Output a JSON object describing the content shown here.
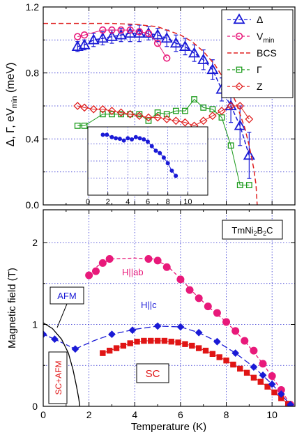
{
  "chart_data": [
    {
      "type": "scatter",
      "panel": "top",
      "ylabel": "Δ, Γ, eV_min (meV)",
      "ylabel_parts": {
        "a": "Δ, Γ, eV",
        "sub": "min",
        "b": " (meV)"
      },
      "xlim": [
        0,
        11
      ],
      "ylim": [
        0,
        1.2
      ],
      "yticks": [
        "0.0",
        "0.4",
        "0.8",
        "1.2"
      ],
      "ytick_values": [
        0,
        0.4,
        0.8,
        1.2
      ],
      "grid": "dotted blue",
      "legend": "top-right",
      "legend_entries": [
        {
          "symbol": "triangle",
          "color": "#1a1ad6",
          "label": "Δ"
        },
        {
          "symbol": "circle",
          "color": "#e8197a",
          "label": "V",
          "sub": "min"
        },
        {
          "symbol": "dash",
          "color": "#e02020",
          "label": "BCS"
        },
        {
          "symbol": "square",
          "color": "#1a9a1a",
          "label": "Γ"
        },
        {
          "symbol": "diamond",
          "color": "#e02020",
          "label": "Z"
        }
      ],
      "series": [
        {
          "name": "Δ",
          "color": "#1a1ad6",
          "marker": "triangle",
          "x": [
            1.5,
            1.8,
            2.2,
            2.6,
            3.0,
            3.4,
            3.8,
            4.2,
            4.6,
            5.0,
            5.4,
            5.8,
            6.2,
            6.6,
            7.0,
            7.4,
            7.8,
            8.2,
            8.6,
            9.0
          ],
          "y": [
            0.96,
            0.97,
            1.0,
            1.01,
            1.02,
            1.03,
            1.04,
            1.04,
            1.04,
            1.03,
            1.01,
            0.98,
            0.96,
            0.92,
            0.88,
            0.82,
            0.7,
            0.6,
            0.48,
            0.3
          ],
          "err": [
            0.03,
            0.03,
            0.04,
            0.04,
            0.04,
            0.04,
            0.05,
            0.05,
            0.04,
            0.04,
            0.05,
            0.05,
            0.05,
            0.05,
            0.06,
            0.06,
            0.07,
            0.1,
            0.12,
            0.14
          ]
        },
        {
          "name": "V_min",
          "color": "#e8197a",
          "marker": "circle",
          "x": [
            1.5,
            1.8,
            2.6,
            3.0,
            3.4,
            3.8,
            4.2,
            4.6,
            5.0,
            5.4
          ],
          "y": [
            1.02,
            1.03,
            1.06,
            1.06,
            1.06,
            1.06,
            1.05,
            1.04,
            0.98,
            0.89
          ]
        },
        {
          "name": "BCS",
          "color": "#e02020",
          "marker": "dash",
          "x": [
            0,
            1,
            2,
            3,
            4,
            5,
            6,
            6.5,
            7,
            7.5,
            8,
            8.4,
            8.8,
            9.0,
            9.2,
            9.3,
            9.35
          ],
          "y": [
            1.1,
            1.1,
            1.1,
            1.1,
            1.095,
            1.08,
            1.03,
            0.99,
            0.93,
            0.85,
            0.74,
            0.63,
            0.47,
            0.36,
            0.22,
            0.12,
            0.0
          ]
        },
        {
          "name": "Γ",
          "color": "#1a9a1a",
          "marker": "square",
          "x": [
            1.5,
            1.8,
            2.6,
            3.0,
            3.4,
            3.8,
            4.2,
            4.6,
            5.0,
            5.4,
            5.8,
            6.2,
            6.6,
            7.0,
            7.4,
            7.8,
            8.2,
            8.6,
            9.0
          ],
          "y": [
            0.48,
            0.48,
            0.55,
            0.55,
            0.55,
            0.55,
            0.55,
            0.51,
            0.56,
            0.55,
            0.57,
            0.57,
            0.64,
            0.59,
            0.58,
            0.53,
            0.36,
            0.12,
            0.12
          ]
        },
        {
          "name": "Z",
          "color": "#e02020",
          "marker": "diamond",
          "x": [
            1.5,
            1.8,
            2.2,
            2.6,
            3.0,
            3.4,
            3.8,
            4.2,
            4.6,
            5.0,
            5.4,
            5.8,
            6.2,
            6.6,
            7.0,
            7.4,
            7.8,
            8.2,
            8.6,
            9.0
          ],
          "y": [
            0.6,
            0.59,
            0.58,
            0.58,
            0.57,
            0.56,
            0.55,
            0.54,
            0.53,
            0.53,
            0.52,
            0.51,
            0.5,
            0.48,
            0.51,
            0.54,
            0.57,
            0.6,
            0.6,
            0.52
          ]
        }
      ],
      "inset": {
        "xlim": [
          0,
          12
        ],
        "ylim": [
          0,
          1.2
        ],
        "xticks": [
          "0",
          "2",
          "4",
          "6",
          "8",
          "10"
        ],
        "xtick_values": [
          0,
          2,
          4,
          6,
          8,
          10
        ],
        "series": [
          {
            "color": "#1a1ad6",
            "x": [
              1.5,
              1.9,
              2.4,
              2.8,
              3.2,
              3.6,
              4.0,
              4.4,
              4.8,
              5.2,
              5.6,
              6.0,
              6.4,
              6.8,
              7.2,
              7.6,
              8.0,
              8.4,
              8.8
            ],
            "y": [
              1.06,
              1.06,
              1.02,
              1.0,
              0.99,
              0.96,
              1.0,
              0.98,
              1.02,
              1.0,
              0.98,
              0.94,
              0.86,
              0.78,
              0.74,
              0.66,
              0.56,
              0.43,
              0.34
            ]
          }
        ]
      }
    },
    {
      "type": "scatter",
      "panel": "bottom",
      "xlabel": "Temperature (K)",
      "ylabel": "Magnetic field (T)",
      "xlim": [
        0,
        11
      ],
      "ylim": [
        0,
        2.4
      ],
      "xticks": [
        "0",
        "2",
        "4",
        "6",
        "8",
        "10"
      ],
      "xtick_values": [
        0,
        2,
        4,
        6,
        8,
        10
      ],
      "yticks": [
        "0",
        "1",
        "2"
      ],
      "ytick_values": [
        0,
        1,
        2
      ],
      "grid": "dotted blue",
      "annotations": {
        "compound": {
          "a": "TmNi",
          "sub1": "2",
          "b": "B",
          "sub2": "2",
          "c": "C"
        },
        "afm": "AFM",
        "sc_afm": "SC+AFM",
        "sc": "SC",
        "h_ab": "H||ab",
        "h_c": "H||c"
      },
      "series": [
        {
          "name": "H||ab",
          "color": "#e8197a",
          "marker": "circle",
          "x": [
            2.0,
            2.3,
            2.6,
            2.9,
            4.6,
            5.0,
            5.4,
            6.0,
            6.4,
            6.8,
            7.2,
            7.6,
            8.0,
            8.4,
            8.8,
            9.2,
            9.6,
            10.0,
            10.4,
            10.8
          ],
          "y": [
            1.6,
            1.65,
            1.75,
            1.8,
            1.8,
            1.78,
            1.7,
            1.55,
            1.42,
            1.32,
            1.22,
            1.14,
            1.03,
            0.92,
            0.8,
            0.68,
            0.52,
            0.37,
            0.2,
            0.02
          ]
        },
        {
          "name": "H||c",
          "color": "#1a1ad6",
          "marker": "diamond",
          "x": [
            0.0,
            0.5,
            1.4,
            3.0,
            3.9,
            5.0,
            6.0,
            6.8,
            7.6,
            8.4,
            9.2,
            9.6,
            10.0,
            10.4,
            10.8
          ],
          "y": [
            0.88,
            0.82,
            0.7,
            0.88,
            0.93,
            0.98,
            0.97,
            0.9,
            0.79,
            0.65,
            0.48,
            0.38,
            0.27,
            0.15,
            0.02
          ]
        },
        {
          "name": "SC",
          "color": "#e01515",
          "marker": "square",
          "x": [
            2.6,
            2.9,
            3.2,
            3.5,
            3.8,
            4.1,
            4.4,
            4.7,
            5.0,
            5.3,
            5.6,
            5.9,
            6.2,
            6.5,
            6.8,
            7.1,
            7.4,
            7.7,
            8.0,
            8.3,
            8.6,
            8.9,
            9.2,
            9.5,
            9.8,
            10.1,
            10.4,
            10.7
          ],
          "y": [
            0.65,
            0.68,
            0.71,
            0.74,
            0.77,
            0.79,
            0.8,
            0.8,
            0.8,
            0.8,
            0.79,
            0.78,
            0.76,
            0.74,
            0.71,
            0.68,
            0.64,
            0.6,
            0.56,
            0.51,
            0.46,
            0.41,
            0.35,
            0.3,
            0.24,
            0.17,
            0.1,
            0.03
          ]
        },
        {
          "name": "AFM boundary",
          "color": "#000000",
          "marker": "none",
          "x": [
            0.0,
            0.4,
            0.8,
            1.1,
            1.3,
            1.45,
            1.55,
            1.6
          ],
          "y": [
            1.02,
            0.95,
            0.82,
            0.65,
            0.45,
            0.25,
            0.1,
            0.0
          ]
        }
      ]
    }
  ]
}
